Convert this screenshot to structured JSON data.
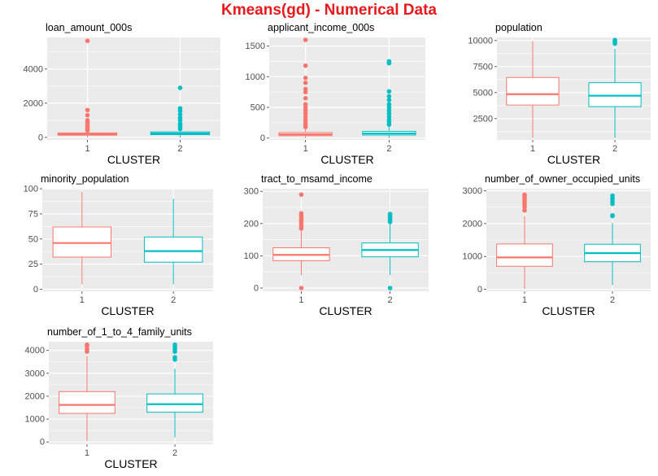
{
  "title": "Kmeans(gd) - Numerical Data",
  "colors": {
    "cluster_1": "#f8766d",
    "cluster_2": "#00bfc4",
    "panel_bg": "#ebebeb",
    "grid": "#ffffff",
    "title": "#e8191c"
  },
  "chart_data": [
    {
      "type": "boxplot",
      "title": "loan_amount_000s",
      "xlabel": "CLUSTER",
      "categories": [
        "1",
        "2"
      ],
      "ylim": [
        -150,
        5850
      ],
      "yticks": [
        0,
        2000,
        4000
      ],
      "ytick_labels": [
        "0",
        "2000",
        "4000"
      ],
      "minor_yticks": [
        1000,
        3000,
        5000
      ],
      "boxes": [
        {
          "cluster": "1",
          "min": 0,
          "q1": 130,
          "median": 190,
          "q3": 260,
          "max": 320,
          "outliers": [
            400,
            500,
            600,
            700,
            800,
            900,
            1000,
            1300,
            1600,
            5650
          ]
        },
        {
          "cluster": "2",
          "min": 0,
          "q1": 160,
          "median": 230,
          "q3": 320,
          "max": 400,
          "outliers": [
            500,
            600,
            700,
            800,
            1000,
            1150,
            1350,
            1550,
            1700,
            2900
          ]
        }
      ]
    },
    {
      "type": "boxplot",
      "title": "applicant_income_000s",
      "xlabel": "CLUSTER",
      "categories": [
        "1",
        "2"
      ],
      "ylim": [
        -30,
        1640
      ],
      "yticks": [
        0,
        500,
        1000,
        1500
      ],
      "ytick_labels": [
        "0",
        "500",
        "1000",
        "1500"
      ],
      "minor_yticks": [
        250,
        750,
        1250
      ],
      "boxes": [
        {
          "cluster": "1",
          "min": 0,
          "q1": 40,
          "median": 60,
          "q3": 90,
          "max": 150,
          "outliers": [
            180,
            220,
            260,
            300,
            350,
            400,
            450,
            500,
            550,
            650,
            750,
            800,
            900,
            980,
            1180,
            1600
          ]
        },
        {
          "cluster": "2",
          "min": 0,
          "q1": 50,
          "median": 75,
          "q3": 110,
          "max": 180,
          "outliers": [
            220,
            260,
            300,
            350,
            400,
            450,
            500,
            550,
            620,
            680,
            760,
            1220,
            1250
          ]
        }
      ]
    },
    {
      "type": "boxplot",
      "title": "population",
      "xlabel": "CLUSTER",
      "categories": [
        "1",
        "2"
      ],
      "ylim": [
        450,
        10300
      ],
      "yticks": [
        2500,
        5000,
        7500,
        10000
      ],
      "ytick_labels": [
        "2500",
        "5000",
        "7500",
        "10000"
      ],
      "minor_yticks": [
        1250,
        3750,
        6250,
        8750
      ],
      "boxes": [
        {
          "cluster": "1",
          "min": 650,
          "q1": 3800,
          "median": 4850,
          "q3": 6450,
          "max": 9950,
          "outliers": []
        },
        {
          "cluster": "2",
          "min": 650,
          "q1": 3650,
          "median": 4700,
          "q3": 5950,
          "max": 9200,
          "outliers": [
            9700,
            9850,
            9950,
            10050
          ]
        }
      ]
    },
    {
      "type": "boxplot",
      "title": "minority_population",
      "xlabel": "CLUSTER",
      "categories": [
        "1",
        "2"
      ],
      "ylim": [
        -2,
        100
      ],
      "yticks": [
        0,
        25,
        50,
        75,
        100
      ],
      "ytick_labels": [
        "0",
        "25",
        "50",
        "75",
        "100"
      ],
      "minor_yticks": [
        12.5,
        37.5,
        62.5,
        87.5
      ],
      "boxes": [
        {
          "cluster": "1",
          "min": 5,
          "q1": 32,
          "median": 46,
          "q3": 62,
          "max": 97,
          "outliers": []
        },
        {
          "cluster": "2",
          "min": 5,
          "q1": 27,
          "median": 38,
          "q3": 52,
          "max": 90,
          "outliers": []
        }
      ]
    },
    {
      "type": "boxplot",
      "title": "tract_to_msamd_income",
      "xlabel": "CLUSTER",
      "categories": [
        "1",
        "2"
      ],
      "ylim": [
        -10,
        308
      ],
      "yticks": [
        0,
        100,
        200,
        300
      ],
      "ytick_labels": [
        "0",
        "100",
        "200",
        "300"
      ],
      "minor_yticks": [
        50,
        150,
        250
      ],
      "boxes": [
        {
          "cluster": "1",
          "min": 40,
          "q1": 85,
          "median": 103,
          "q3": 125,
          "max": 182,
          "outliers": [
            0,
            185,
            192,
            200,
            207,
            212,
            218,
            225,
            232,
            290
          ]
        },
        {
          "cluster": "2",
          "min": 40,
          "q1": 97,
          "median": 118,
          "q3": 140,
          "max": 200,
          "outliers": [
            0,
            205,
            210,
            215,
            220,
            225,
            230
          ]
        }
      ]
    },
    {
      "type": "boxplot",
      "title": "number_of_owner_occupied_units",
      "xlabel": "CLUSTER",
      "categories": [
        "1",
        "2"
      ],
      "ylim": [
        -60,
        3060
      ],
      "yticks": [
        0,
        1000,
        2000,
        3000
      ],
      "ytick_labels": [
        "0",
        "1000",
        "2000",
        "3000"
      ],
      "minor_yticks": [
        500,
        1500,
        2500
      ],
      "boxes": [
        {
          "cluster": "1",
          "min": 10,
          "q1": 700,
          "median": 970,
          "q3": 1380,
          "max": 2230,
          "outliers": [
            2400,
            2500,
            2580,
            2650,
            2700,
            2760,
            2820,
            2880
          ]
        },
        {
          "cluster": "2",
          "min": 130,
          "q1": 840,
          "median": 1100,
          "q3": 1370,
          "max": 2020,
          "outliers": [
            2230,
            2250,
            2600,
            2680,
            2760,
            2850
          ]
        }
      ]
    },
    {
      "type": "boxplot",
      "title": "number_of_1_to_4_family_units",
      "xlabel": "CLUSTER",
      "categories": [
        "1",
        "2"
      ],
      "ylim": [
        -100,
        4380
      ],
      "yticks": [
        0,
        1000,
        2000,
        3000,
        4000
      ],
      "ytick_labels": [
        "0",
        "1000",
        "2000",
        "3000",
        "4000"
      ],
      "minor_yticks": [
        500,
        1500,
        2500,
        3500
      ],
      "boxes": [
        {
          "cluster": "1",
          "min": 40,
          "q1": 1250,
          "median": 1620,
          "q3": 2200,
          "max": 3750,
          "outliers": [
            3950,
            4050,
            4200,
            4250
          ]
        },
        {
          "cluster": "2",
          "min": 200,
          "q1": 1300,
          "median": 1650,
          "q3": 2100,
          "max": 3200,
          "outliers": [
            3600,
            3700,
            3950,
            4050,
            4150,
            4250
          ]
        }
      ]
    }
  ]
}
